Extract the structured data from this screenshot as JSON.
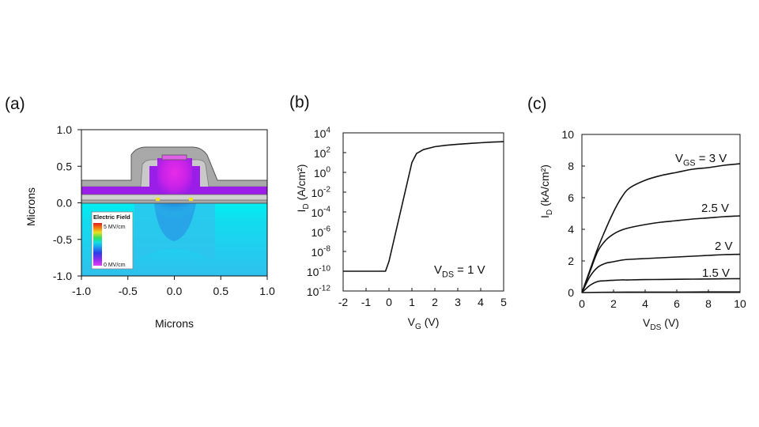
{
  "panel_labels": {
    "a": "(a)",
    "b": "(b)",
    "c": "(c)"
  },
  "legend": {
    "title": "Electric Field",
    "max_label": "5 MV/cm",
    "min_label": "0 MV/cm"
  },
  "colors": {
    "axis": "#111111",
    "oxide": "#a9a9a9",
    "oxide_edge": "#555555",
    "gate_magenta": "#e020e8",
    "gate_purple": "#9a1ee8",
    "substrate_cyan": "#00e8f0",
    "substrate_blue": "#3ab8e8"
  },
  "chart_data": [
    {
      "id": "a",
      "type": "heatmap",
      "title": "",
      "xlabel": "Microns",
      "ylabel": "Microns",
      "xlim": [
        -1.0,
        1.0
      ],
      "ylim": [
        -1.0,
        1.0
      ],
      "xticks": [
        "-1.0",
        "-0.5",
        "0.0",
        "0.5",
        "1.0"
      ],
      "yticks": [
        "1.0",
        "0.5",
        "0.0",
        "-0.5",
        "-1.0"
      ],
      "colorbar": {
        "label": "Electric Field",
        "range": [
          0,
          5
        ],
        "unit": "MV/cm"
      }
    },
    {
      "id": "b",
      "type": "line",
      "xlabel": {
        "main": "V",
        "sub": "G",
        "tail": " (V)"
      },
      "ylabel": {
        "main": "I",
        "sub": "D",
        "tail": " (A/cm²)"
      },
      "xlim": [
        -2,
        5
      ],
      "ylim_log10": [
        -12,
        4
      ],
      "y_scale": "log",
      "xticks": [
        "-2",
        "-1",
        "0",
        "1",
        "2",
        "3",
        "4",
        "5"
      ],
      "yticks": [
        {
          "base": "10",
          "exp": "4"
        },
        {
          "base": "10",
          "exp": "2"
        },
        {
          "base": "10",
          "exp": "0"
        },
        {
          "base": "10",
          "exp": "-2"
        },
        {
          "base": "10",
          "exp": "-4"
        },
        {
          "base": "10",
          "exp": "-6"
        },
        {
          "base": "10",
          "exp": "-8"
        },
        {
          "base": "10",
          "exp": "-10"
        },
        {
          "base": "10",
          "exp": "-12"
        }
      ],
      "annotation": {
        "main": "V",
        "sub": "DS",
        "tail": " = 1 V"
      },
      "series": [
        {
          "x": [
            -2.0,
            -1.0,
            -0.15,
            0.0,
            0.2,
            0.4,
            0.6,
            0.8,
            1.0,
            1.2,
            1.5,
            2.0,
            2.5,
            3.0,
            3.5,
            4.0,
            4.5,
            5.0
          ],
          "y": [
            1e-10,
            1e-10,
            1e-10,
            1e-09,
            1e-07,
            1e-05,
            0.001,
            0.1,
            10,
            80,
            200,
            400,
            550,
            700,
            850,
            1000,
            1150,
            1300
          ]
        }
      ]
    },
    {
      "id": "c",
      "type": "line",
      "xlabel": {
        "main": "V",
        "sub": "DS",
        "tail": " (V)"
      },
      "ylabel": {
        "main": "I",
        "sub": "D",
        "tail": " (kA/cm²)"
      },
      "xlim": [
        0,
        10
      ],
      "ylim": [
        0,
        10
      ],
      "xticks": [
        "0",
        "2",
        "4",
        "6",
        "8",
        "10"
      ],
      "yticks": [
        "0",
        "2",
        "4",
        "6",
        "8",
        "10"
      ],
      "series": [
        {
          "label": {
            "main": "V",
            "sub": "GS",
            "tail": " = 3 V"
          },
          "x": [
            0,
            0.5,
            1,
            1.5,
            2,
            2.5,
            3,
            4,
            5,
            6,
            7,
            8,
            9,
            10
          ],
          "y": [
            0,
            1.4,
            2.8,
            4.0,
            5.1,
            6.0,
            6.6,
            7.1,
            7.4,
            7.6,
            7.8,
            7.9,
            8.05,
            8.15
          ]
        },
        {
          "label": {
            "main": "2.5 V",
            "sub": "",
            "tail": ""
          },
          "x": [
            0,
            0.5,
            1,
            1.5,
            2,
            2.5,
            3,
            4,
            5,
            6,
            7,
            8,
            9,
            10
          ],
          "y": [
            0,
            1.3,
            2.6,
            3.3,
            3.7,
            3.95,
            4.1,
            4.3,
            4.45,
            4.55,
            4.65,
            4.72,
            4.8,
            4.85
          ]
        },
        {
          "label": {
            "main": "2 V",
            "sub": "",
            "tail": ""
          },
          "x": [
            0,
            0.5,
            1,
            1.5,
            2,
            2.5,
            3,
            4,
            5,
            6,
            7,
            8,
            9,
            10
          ],
          "y": [
            0,
            1.0,
            1.6,
            1.85,
            1.95,
            2.05,
            2.1,
            2.15,
            2.2,
            2.25,
            2.3,
            2.35,
            2.4,
            2.42
          ]
        },
        {
          "label": {
            "main": "1.5 V",
            "sub": "",
            "tail": ""
          },
          "x": [
            0,
            0.5,
            1,
            1.5,
            2,
            2.5,
            3,
            4,
            5,
            6,
            7,
            8,
            9,
            10
          ],
          "y": [
            0,
            0.45,
            0.7,
            0.75,
            0.78,
            0.8,
            0.8,
            0.82,
            0.83,
            0.84,
            0.85,
            0.86,
            0.87,
            0.88
          ]
        },
        {
          "label": null,
          "x": [
            0,
            2,
            4,
            6,
            8,
            10
          ],
          "y": [
            0,
            0.02,
            0.03,
            0.03,
            0.04,
            0.04
          ]
        }
      ]
    }
  ]
}
